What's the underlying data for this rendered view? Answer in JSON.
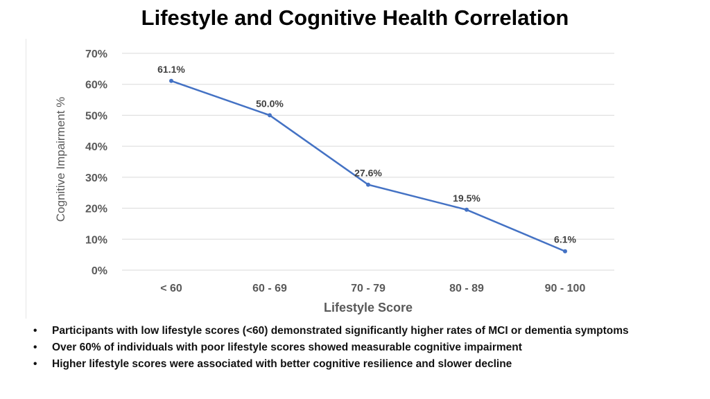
{
  "chart_data": {
    "type": "line",
    "title": "Lifestyle and Cognitive Health Correlation",
    "xlabel": "Lifestyle Score",
    "ylabel": "Cognitive Impairment %",
    "categories": [
      "< 60",
      "60 - 69",
      "70 - 79",
      "80 - 89",
      "90 - 100"
    ],
    "values": [
      61.1,
      50.0,
      27.6,
      19.5,
      6.1
    ],
    "data_labels": [
      "61.1%",
      "50.0%",
      "27.6%",
      "19.5%",
      "6.1%"
    ],
    "yticks": [
      "0%",
      "10%",
      "20%",
      "30%",
      "40%",
      "50%",
      "60%",
      "70%"
    ],
    "ylim": [
      0,
      70
    ],
    "grid": true,
    "legend": "none",
    "line_color": "#4472C4"
  },
  "bullets": [
    "Participants with low lifestyle scores (<60) demonstrated significantly higher rates of MCI or dementia symptoms",
    "Over 60% of individuals with poor lifestyle scores showed measurable cognitive impairment",
    "Higher lifestyle scores were associated with better cognitive resilience and slower decline"
  ]
}
